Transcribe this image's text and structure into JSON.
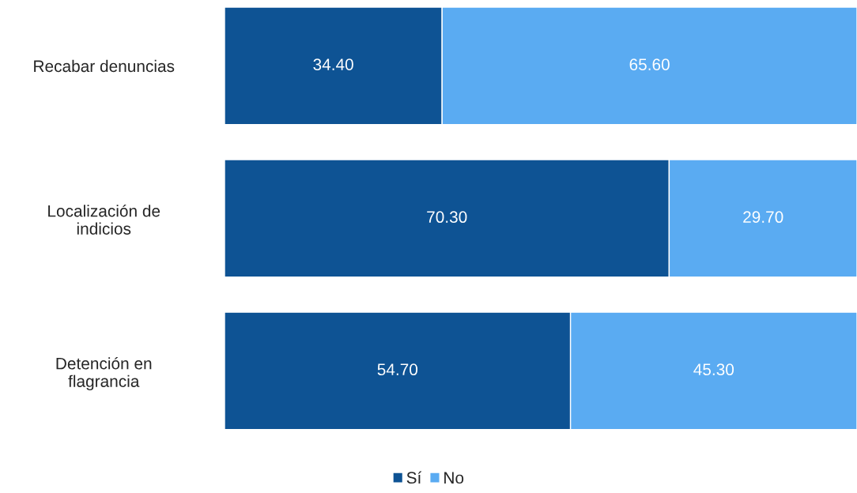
{
  "chart_data": {
    "type": "bar",
    "orientation": "horizontal",
    "stacked": true,
    "categories": [
      "Recabar denuncias",
      "Localización de\nindicios",
      "Detención en\nflagrancia"
    ],
    "series": [
      {
        "name": "Sí",
        "color": "#0e5394",
        "values": [
          34.4,
          70.3,
          54.7
        ],
        "value_labels": [
          "34.40",
          "70.30",
          "54.70"
        ]
      },
      {
        "name": "No",
        "color": "#5aabf2",
        "values": [
          65.6,
          29.7,
          45.3
        ],
        "value_labels": [
          "65.60",
          "29.70",
          "45.30"
        ]
      }
    ],
    "xlim": [
      0,
      100
    ],
    "tick_labels": "y",
    "legend": "bottom"
  }
}
